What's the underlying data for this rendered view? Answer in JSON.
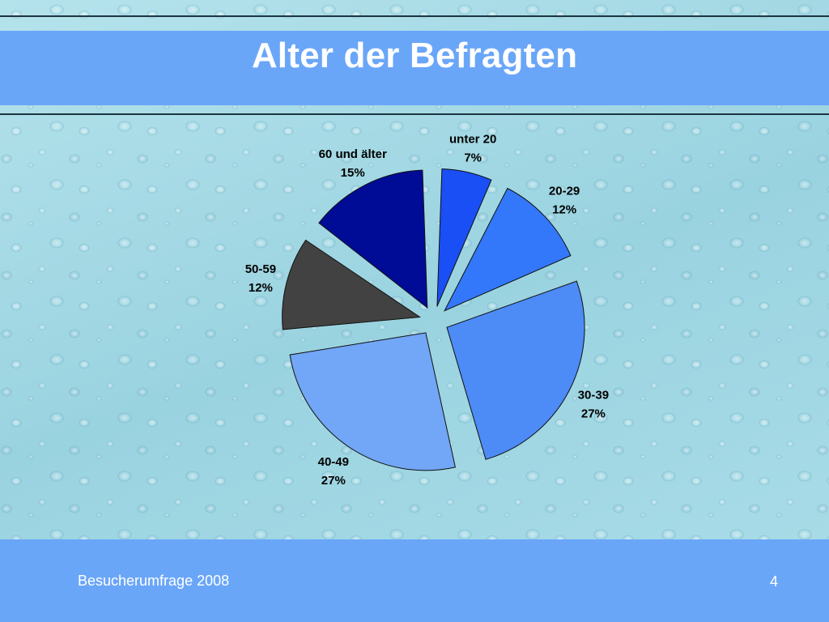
{
  "slide": {
    "title": "Alter der Befragten",
    "footer_left": "Besucherumfrage 2008",
    "footer_right": "4"
  },
  "colors": {
    "band": "#6aa6f8",
    "title_text": "#ffffff"
  },
  "chart_data": {
    "type": "pie",
    "exploded": true,
    "slices": [
      {
        "label": "unter 20",
        "value": 7,
        "pct_label": "7%",
        "color": "#1a4ff5"
      },
      {
        "label": "20-29",
        "value": 12,
        "pct_label": "12%",
        "color": "#3378fb"
      },
      {
        "label": "30-39",
        "value": 27,
        "pct_label": "27%",
        "color": "#4d8bf7"
      },
      {
        "label": "40-49",
        "value": 27,
        "pct_label": "27%",
        "color": "#72a6f6"
      },
      {
        "label": "50-59",
        "value": 12,
        "pct_label": "12%",
        "color": "#424242"
      },
      {
        "label": "60 und älter",
        "value": 15,
        "pct_label": "15%",
        "color": "#000c96"
      }
    ]
  }
}
